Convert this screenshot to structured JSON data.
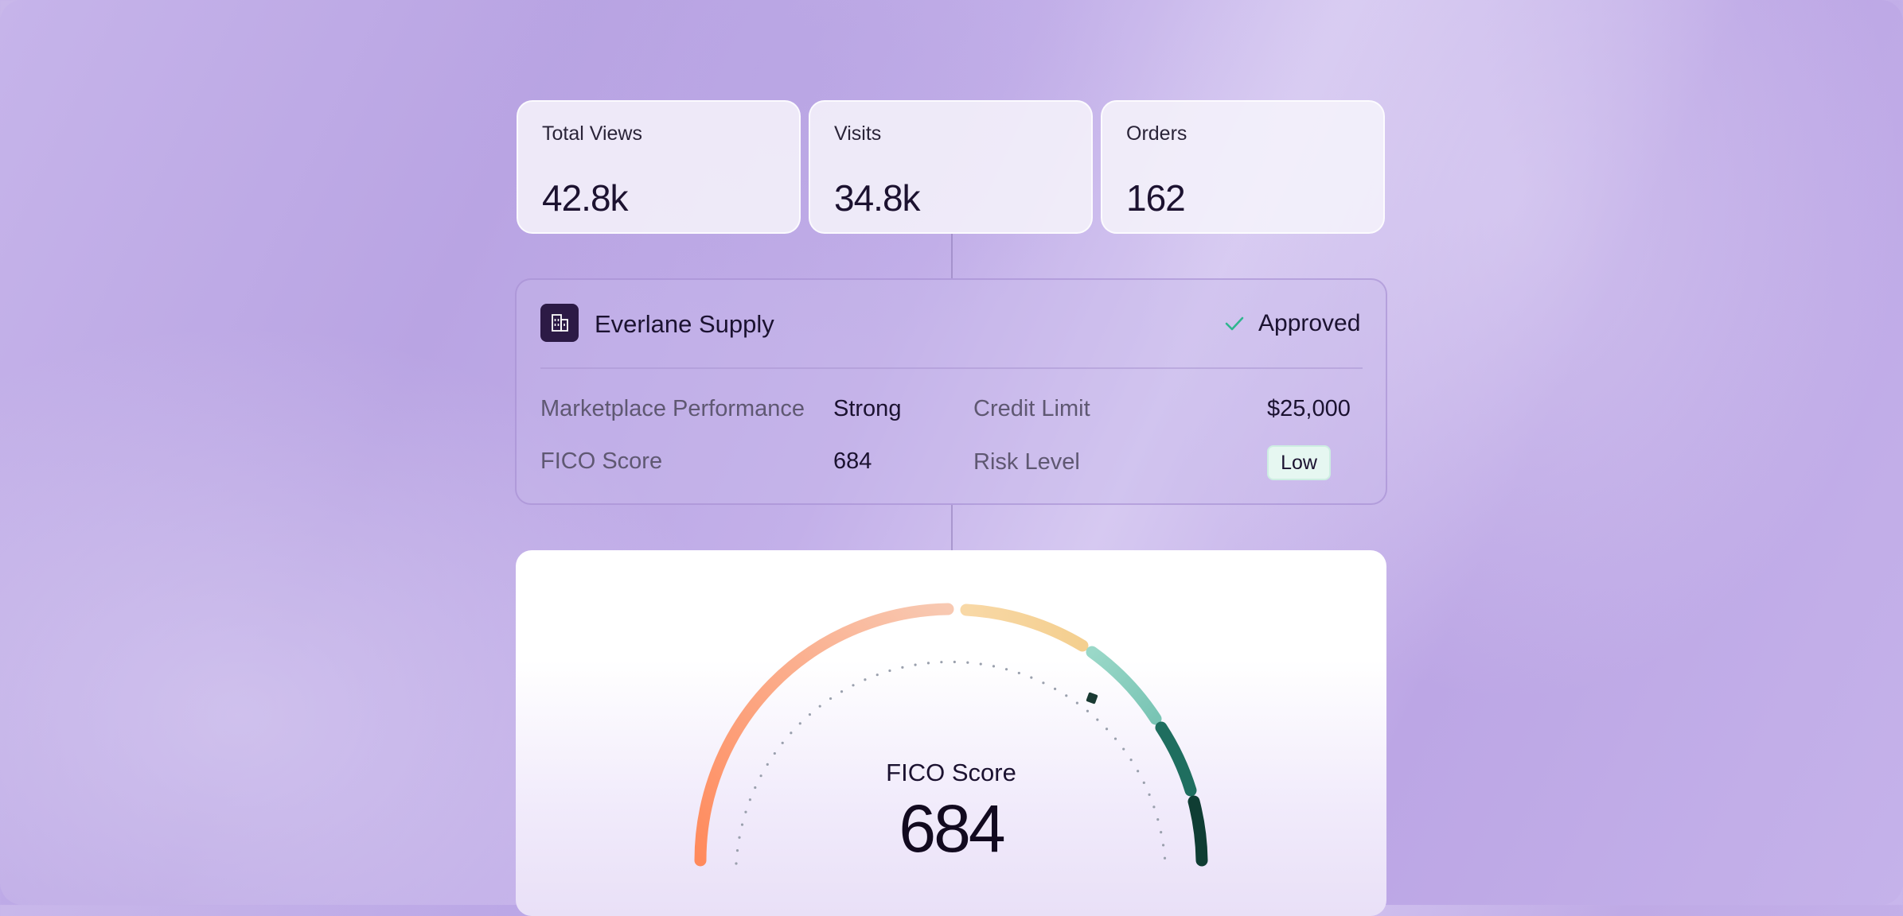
{
  "metrics": [
    {
      "label": "Total Views",
      "value": "42.8k"
    },
    {
      "label": "Visits",
      "value": "34.8k"
    },
    {
      "label": "Orders",
      "value": "162"
    }
  ],
  "company": {
    "name": "Everlane Supply",
    "logo_icon": "building-icon",
    "status": "Approved",
    "status_icon": "check-icon",
    "status_color": "#2fb68e",
    "fields": {
      "marketplace_performance_label": "Marketplace Performance",
      "marketplace_performance_value": "Strong",
      "credit_limit_label": "Credit Limit",
      "credit_limit_value": "$25,000",
      "fico_label": "FICO Score",
      "fico_value": "684",
      "risk_label": "Risk Level",
      "risk_value": "Low"
    }
  },
  "gauge": {
    "title": "FICO Score",
    "value": "684",
    "score": 684,
    "range": [
      300,
      850
    ],
    "segment_colors": [
      "#ff8a5c",
      "#f8c9b2",
      "#f7d29a",
      "#8fd1c4",
      "#1f6e5f",
      "#0f3d33"
    ]
  }
}
